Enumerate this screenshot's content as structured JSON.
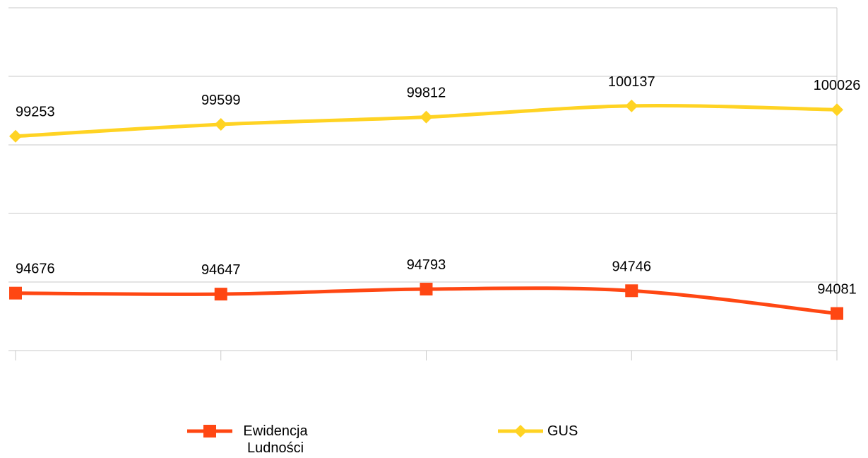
{
  "chart_data": {
    "type": "line",
    "categories": [
      null,
      null,
      null,
      null,
      null
    ],
    "series": [
      {
        "name": "Ewidencja Ludności",
        "color": "#ff4713",
        "marker": "square",
        "values": [
          94676,
          94647,
          94793,
          94746,
          94081
        ]
      },
      {
        "name": "GUS",
        "color": "#ffd323",
        "marker": "diamond",
        "values": [
          99253,
          99599,
          99812,
          100137,
          100026
        ]
      }
    ],
    "ylim": [
      93000,
      103000
    ],
    "yticks": [
      93000,
      95000,
      97000,
      99000,
      101000,
      103000
    ],
    "grid": true,
    "smooth": true,
    "legend": "bottom"
  }
}
